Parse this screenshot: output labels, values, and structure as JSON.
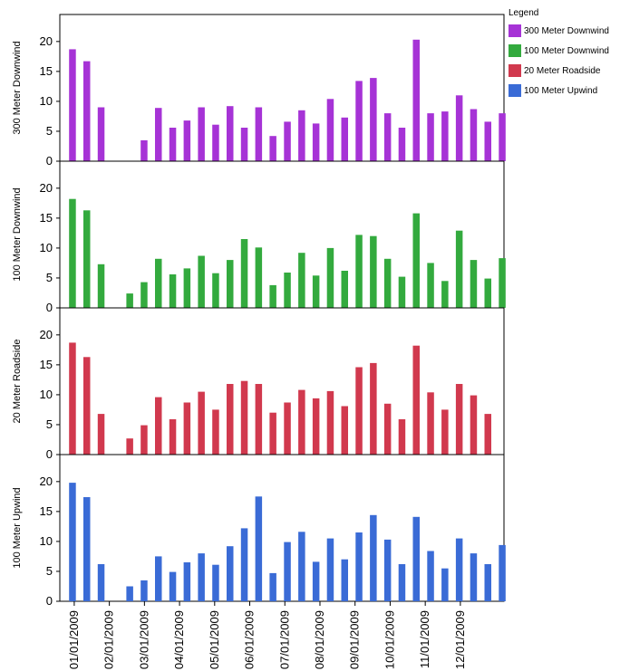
{
  "legend": {
    "title": "Legend",
    "items": [
      {
        "label": "300 Meter Downwind",
        "color": "#a633d6"
      },
      {
        "label": "100 Meter Downwind",
        "color": "#33aa3e"
      },
      {
        "label": "20 Meter Roadside",
        "color": "#d1394e"
      },
      {
        "label": "100 Meter Upwind",
        "color": "#3a6bd6"
      }
    ]
  },
  "chart_data": {
    "type": "bar",
    "layout": "stacked-panels",
    "grid": false,
    "legend_position": "top-right",
    "ylim": [
      0,
      23
    ],
    "yticks": [
      0,
      5,
      10,
      15,
      20
    ],
    "x_tick_labels": [
      "01/01/2009",
      "02/01/2009",
      "03/01/2009",
      "04/01/2009",
      "05/01/2009",
      "06/01/2009",
      "07/01/2009",
      "08/01/2009",
      "09/01/2009",
      "10/01/2009",
      "11/01/2009",
      "12/01/2009"
    ],
    "panels": [
      {
        "ylabel": "300 Meter Downwind",
        "color": "#a633d6",
        "values": [
          18.7,
          16.7,
          9.0,
          null,
          null,
          3.5,
          8.9,
          5.6,
          6.8,
          9.0,
          6.1,
          9.2,
          5.6,
          9.0,
          4.2,
          6.6,
          8.5,
          6.3,
          10.4,
          7.3,
          13.4,
          13.9,
          8.0,
          5.6,
          20.3,
          8.0,
          8.3,
          11.0,
          8.7,
          6.6,
          8.0
        ]
      },
      {
        "ylabel": "100 Meter Downwind",
        "color": "#33aa3e",
        "values": [
          18.2,
          16.3,
          7.3,
          null,
          2.4,
          4.3,
          8.2,
          5.6,
          6.6,
          8.7,
          5.8,
          8.0,
          11.5,
          10.1,
          3.8,
          5.9,
          9.2,
          5.4,
          10.0,
          6.2,
          12.2,
          12.0,
          8.2,
          5.2,
          15.8,
          7.5,
          4.5,
          12.9,
          8.0,
          4.9,
          8.3
        ]
      },
      {
        "ylabel": "20 Meter Roadside",
        "color": "#d1394e",
        "values": [
          18.7,
          16.3,
          6.8,
          null,
          2.7,
          4.9,
          9.6,
          5.9,
          8.7,
          10.5,
          7.5,
          11.8,
          12.3,
          11.8,
          7.0,
          8.7,
          10.8,
          9.4,
          10.6,
          8.1,
          14.6,
          15.3,
          8.5,
          5.9,
          18.2,
          10.4,
          7.5,
          11.8,
          9.9,
          6.8,
          null
        ]
      },
      {
        "ylabel": "100 Meter Upwind",
        "color": "#3a6bd6",
        "values": [
          19.8,
          17.4,
          6.2,
          null,
          2.5,
          3.5,
          7.5,
          4.9,
          6.5,
          8.0,
          6.1,
          9.2,
          12.2,
          17.5,
          4.7,
          9.9,
          11.6,
          6.6,
          10.5,
          7.0,
          11.5,
          14.4,
          10.3,
          6.2,
          14.1,
          8.4,
          5.5,
          10.5,
          8.0,
          6.2,
          9.4
        ]
      }
    ]
  }
}
